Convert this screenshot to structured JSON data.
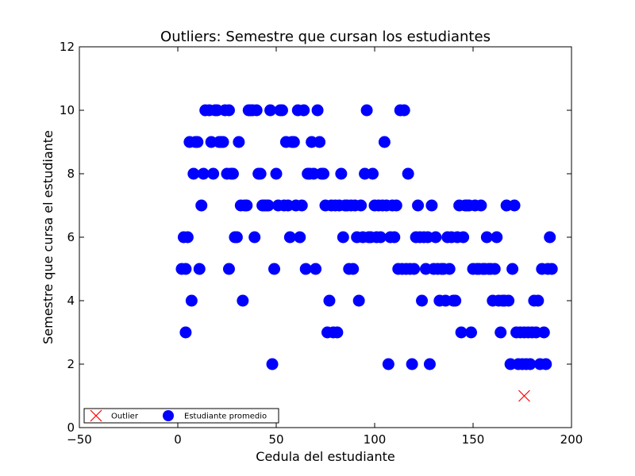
{
  "chart_data": {
    "type": "scatter",
    "title": "Outliers: Semestre que cursan los estudiantes",
    "xlabel": "Cedula del estudiante",
    "ylabel": "Semestre que cursa el estudiante",
    "xlim": [
      -50,
      200
    ],
    "ylim": [
      0,
      12
    ],
    "xticks": [
      -50,
      0,
      50,
      100,
      150,
      200
    ],
    "yticks": [
      0,
      2,
      4,
      6,
      8,
      10,
      12
    ],
    "xtick_labels": [
      "−50",
      "0",
      "50",
      "100",
      "150",
      "200"
    ],
    "ytick_labels": [
      "0",
      "2",
      "4",
      "6",
      "8",
      "10",
      "12"
    ],
    "grid": false,
    "legend": {
      "position": "bottom-left",
      "columns": 2
    },
    "series": [
      {
        "name": "Outlier",
        "marker": "x",
        "color": "#ff0000",
        "points": [
          [
            176,
            1
          ]
        ]
      },
      {
        "name": "Estudiante promedio",
        "marker": "circle",
        "color": "#0000ff",
        "points": [
          [
            2,
            5
          ],
          [
            3,
            6
          ],
          [
            4,
            3
          ],
          [
            4,
            5
          ],
          [
            5,
            6
          ],
          [
            6,
            9
          ],
          [
            7,
            4
          ],
          [
            8,
            8
          ],
          [
            9,
            9
          ],
          [
            10,
            9
          ],
          [
            11,
            5
          ],
          [
            12,
            7
          ],
          [
            13,
            8
          ],
          [
            14,
            10
          ],
          [
            16,
            10
          ],
          [
            17,
            9
          ],
          [
            18,
            8
          ],
          [
            19,
            10
          ],
          [
            20,
            10
          ],
          [
            21,
            9
          ],
          [
            22,
            9
          ],
          [
            23,
            9
          ],
          [
            24,
            10
          ],
          [
            25,
            8
          ],
          [
            26,
            10
          ],
          [
            26,
            5
          ],
          [
            27,
            8
          ],
          [
            28,
            8
          ],
          [
            29,
            6
          ],
          [
            30,
            6
          ],
          [
            31,
            9
          ],
          [
            32,
            7
          ],
          [
            33,
            4
          ],
          [
            34,
            7
          ],
          [
            35,
            7
          ],
          [
            36,
            10
          ],
          [
            37,
            10
          ],
          [
            38,
            10
          ],
          [
            39,
            6
          ],
          [
            40,
            10
          ],
          [
            41,
            8
          ],
          [
            42,
            8
          ],
          [
            43,
            7
          ],
          [
            44,
            7
          ],
          [
            45,
            7
          ],
          [
            46,
            7
          ],
          [
            47,
            10
          ],
          [
            48,
            2
          ],
          [
            49,
            5
          ],
          [
            50,
            8
          ],
          [
            51,
            7
          ],
          [
            52,
            10
          ],
          [
            53,
            10
          ],
          [
            54,
            7
          ],
          [
            55,
            9
          ],
          [
            56,
            7
          ],
          [
            57,
            6
          ],
          [
            58,
            9
          ],
          [
            59,
            9
          ],
          [
            60,
            7
          ],
          [
            61,
            10
          ],
          [
            62,
            6
          ],
          [
            63,
            7
          ],
          [
            64,
            10
          ],
          [
            65,
            5
          ],
          [
            66,
            8
          ],
          [
            67,
            8
          ],
          [
            68,
            9
          ],
          [
            69,
            8
          ],
          [
            70,
            5
          ],
          [
            71,
            10
          ],
          [
            72,
            9
          ],
          [
            73,
            8
          ],
          [
            74,
            8
          ],
          [
            75,
            7
          ],
          [
            76,
            3
          ],
          [
            77,
            4
          ],
          [
            78,
            7
          ],
          [
            79,
            3
          ],
          [
            80,
            7
          ],
          [
            81,
            3
          ],
          [
            82,
            7
          ],
          [
            83,
            8
          ],
          [
            84,
            6
          ],
          [
            85,
            7
          ],
          [
            86,
            7
          ],
          [
            87,
            5
          ],
          [
            88,
            7
          ],
          [
            89,
            5
          ],
          [
            90,
            7
          ],
          [
            91,
            6
          ],
          [
            92,
            4
          ],
          [
            93,
            7
          ],
          [
            94,
            6
          ],
          [
            95,
            8
          ],
          [
            96,
            10
          ],
          [
            97,
            6
          ],
          [
            98,
            6
          ],
          [
            99,
            8
          ],
          [
            100,
            7
          ],
          [
            101,
            6
          ],
          [
            102,
            7
          ],
          [
            103,
            6
          ],
          [
            104,
            7
          ],
          [
            105,
            9
          ],
          [
            106,
            7
          ],
          [
            107,
            2
          ],
          [
            108,
            6
          ],
          [
            109,
            7
          ],
          [
            110,
            6
          ],
          [
            111,
            7
          ],
          [
            112,
            5
          ],
          [
            113,
            10
          ],
          [
            114,
            5
          ],
          [
            115,
            10
          ],
          [
            116,
            5
          ],
          [
            117,
            8
          ],
          [
            118,
            5
          ],
          [
            119,
            2
          ],
          [
            120,
            5
          ],
          [
            121,
            6
          ],
          [
            122,
            7
          ],
          [
            123,
            6
          ],
          [
            124,
            4
          ],
          [
            125,
            6
          ],
          [
            126,
            5
          ],
          [
            127,
            6
          ],
          [
            128,
            2
          ],
          [
            129,
            7
          ],
          [
            130,
            5
          ],
          [
            131,
            6
          ],
          [
            132,
            5
          ],
          [
            133,
            4
          ],
          [
            134,
            5
          ],
          [
            135,
            5
          ],
          [
            136,
            4
          ],
          [
            137,
            6
          ],
          [
            138,
            5
          ],
          [
            139,
            6
          ],
          [
            140,
            4
          ],
          [
            141,
            4
          ],
          [
            142,
            6
          ],
          [
            143,
            7
          ],
          [
            144,
            3
          ],
          [
            145,
            6
          ],
          [
            146,
            7
          ],
          [
            147,
            7
          ],
          [
            148,
            7
          ],
          [
            149,
            3
          ],
          [
            150,
            5
          ],
          [
            151,
            7
          ],
          [
            152,
            5
          ],
          [
            153,
            5
          ],
          [
            154,
            7
          ],
          [
            155,
            5
          ],
          [
            156,
            5
          ],
          [
            157,
            6
          ],
          [
            158,
            5
          ],
          [
            159,
            5
          ],
          [
            160,
            4
          ],
          [
            161,
            5
          ],
          [
            162,
            6
          ],
          [
            163,
            4
          ],
          [
            164,
            3
          ],
          [
            165,
            4
          ],
          [
            166,
            4
          ],
          [
            167,
            7
          ],
          [
            168,
            4
          ],
          [
            169,
            2
          ],
          [
            170,
            5
          ],
          [
            171,
            7
          ],
          [
            172,
            3
          ],
          [
            173,
            2
          ],
          [
            174,
            3
          ],
          [
            175,
            2
          ],
          [
            176,
            3
          ],
          [
            177,
            2
          ],
          [
            178,
            3
          ],
          [
            179,
            2
          ],
          [
            180,
            3
          ],
          [
            181,
            4
          ],
          [
            182,
            3
          ],
          [
            183,
            4
          ],
          [
            184,
            2
          ],
          [
            185,
            5
          ],
          [
            186,
            3
          ],
          [
            187,
            2
          ],
          [
            188,
            5
          ],
          [
            189,
            6
          ],
          [
            190,
            5
          ]
        ]
      }
    ]
  }
}
